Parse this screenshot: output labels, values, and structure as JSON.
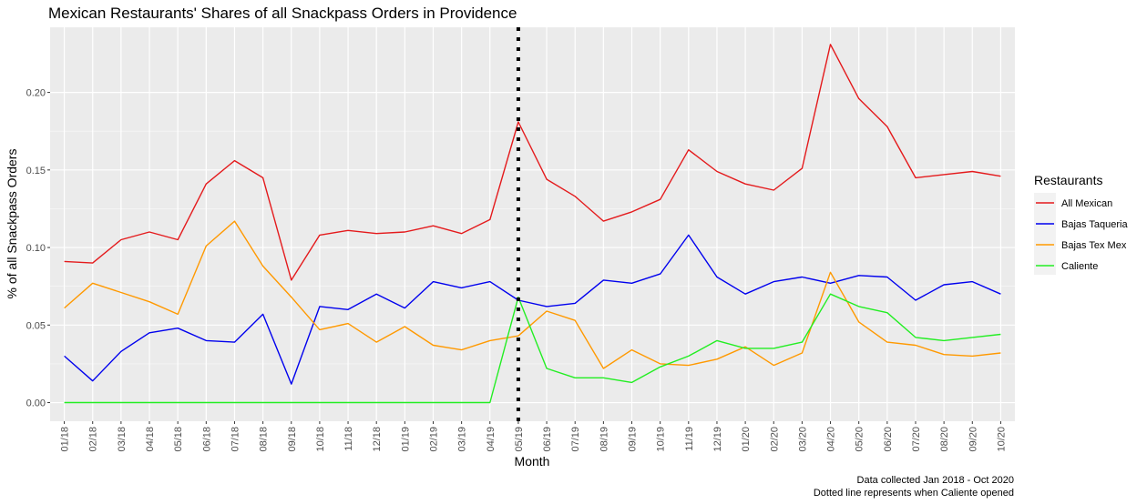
{
  "chart_data": {
    "type": "line",
    "title": "Mexican Restaurants' Shares of all Snackpass Orders in Providence",
    "xlabel": "Month",
    "ylabel": "% of all Snackpass Orders",
    "x": [
      "01/18",
      "02/18",
      "03/18",
      "04/18",
      "05/18",
      "06/18",
      "07/18",
      "08/18",
      "09/18",
      "10/18",
      "11/18",
      "12/18",
      "01/19",
      "02/19",
      "03/19",
      "04/19",
      "05/19",
      "06/19",
      "07/19",
      "08/19",
      "09/19",
      "10/19",
      "11/19",
      "12/19",
      "01/20",
      "02/20",
      "03/20",
      "04/20",
      "05/20",
      "06/20",
      "07/20",
      "08/20",
      "09/20",
      "10/20"
    ],
    "ylim": [
      -0.012,
      0.242
    ],
    "yticks": [
      0.0,
      0.05,
      0.1,
      0.15,
      0.2
    ],
    "ytick_labels": [
      "0.00",
      "0.05",
      "0.10",
      "0.15",
      "0.20"
    ],
    "grid": true,
    "legend_position": "right",
    "legend_title": "Restaurants",
    "series": [
      {
        "name": "All Mexican",
        "color": "#e41a1c",
        "values": [
          0.091,
          0.09,
          0.105,
          0.11,
          0.105,
          0.141,
          0.156,
          0.145,
          0.079,
          0.108,
          0.111,
          0.109,
          0.11,
          0.114,
          0.109,
          0.118,
          0.181,
          0.144,
          0.133,
          0.117,
          0.123,
          0.131,
          0.163,
          0.149,
          0.141,
          0.137,
          0.151,
          0.231,
          0.196,
          0.178,
          0.145,
          0.147,
          0.149,
          0.146
        ]
      },
      {
        "name": "Bajas Taqueria",
        "color": "#0000ee",
        "values": [
          0.03,
          0.014,
          0.033,
          0.045,
          0.048,
          0.04,
          0.039,
          0.057,
          0.012,
          0.062,
          0.06,
          0.07,
          0.061,
          0.078,
          0.074,
          0.078,
          0.066,
          0.062,
          0.064,
          0.079,
          0.077,
          0.083,
          0.108,
          0.081,
          0.07,
          0.078,
          0.081,
          0.077,
          0.082,
          0.081,
          0.066,
          0.076,
          0.078,
          0.07
        ]
      },
      {
        "name": "Bajas Tex Mex",
        "color": "#ff9900",
        "values": [
          0.061,
          0.077,
          0.071,
          0.065,
          0.057,
          0.101,
          0.117,
          0.088,
          0.068,
          0.047,
          0.051,
          0.039,
          0.049,
          0.037,
          0.034,
          0.04,
          0.043,
          0.059,
          0.053,
          0.022,
          0.034,
          0.025,
          0.024,
          0.028,
          0.036,
          0.024,
          0.032,
          0.084,
          0.052,
          0.039,
          0.037,
          0.031,
          0.03,
          0.032
        ]
      },
      {
        "name": "Caliente",
        "color": "#22ee22",
        "values": [
          0.0,
          0.0,
          0.0,
          0.0,
          0.0,
          0.0,
          0.0,
          0.0,
          0.0,
          0.0,
          0.0,
          0.0,
          0.0,
          0.0,
          0.0,
          0.0,
          0.068,
          0.022,
          0.016,
          0.016,
          0.013,
          0.023,
          0.03,
          0.04,
          0.035,
          0.035,
          0.039,
          0.07,
          0.062,
          0.058,
          0.042,
          0.04,
          0.042,
          0.044
        ]
      }
    ],
    "vline": {
      "x": "05/19",
      "style": "dotted",
      "color": "#000000"
    },
    "caption": [
      "Data collected Jan 2018 - Oct 2020",
      "Dotted line represents when Caliente opened"
    ]
  }
}
